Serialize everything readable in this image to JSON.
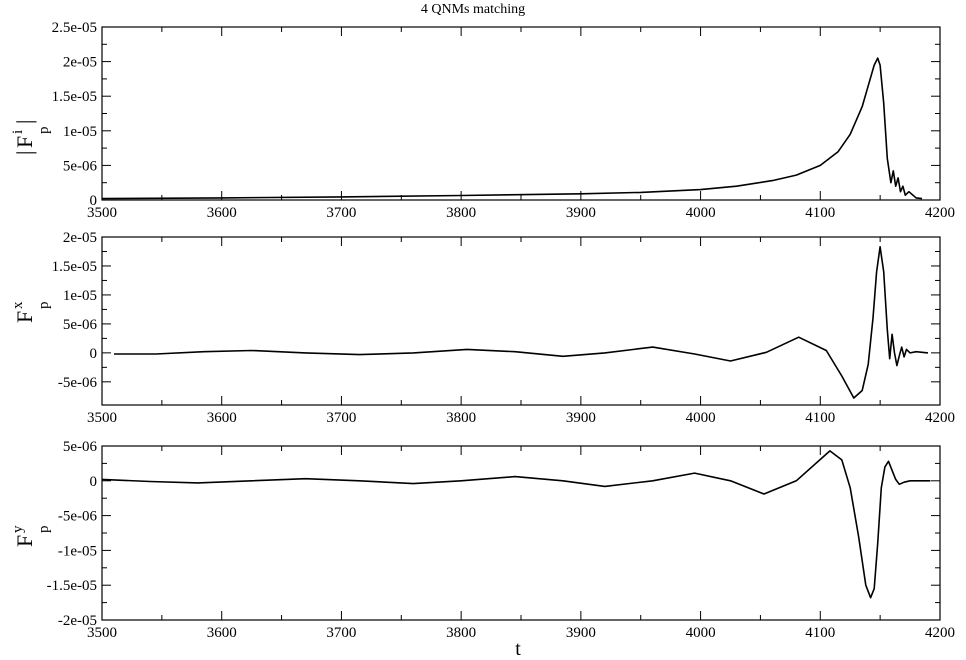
{
  "figure_title": "4 QNMs matching",
  "x_axis_label": "t",
  "chart_data": [
    {
      "type": "line",
      "title": "4 QNMs matching",
      "ylabel": {
        "main": "|F",
        "sup": "i",
        "sub": "p",
        "close": "|"
      },
      "xlim": [
        3500,
        4200
      ],
      "ylim": [
        0,
        2.5e-05
      ],
      "x_ticks": [
        3500,
        3600,
        3700,
        3800,
        3900,
        4000,
        4100,
        4200
      ],
      "x_tick_labels": [
        "3500",
        "3600",
        "3700",
        "3800",
        "3900",
        "4000",
        "4100",
        "4200"
      ],
      "y_ticks": [
        0,
        5e-06,
        1e-05,
        1.5e-05,
        2e-05,
        2.5e-05
      ],
      "y_tick_labels": [
        "0",
        "5e-06",
        "1e-05",
        "1.5e-05",
        "2e-05",
        "2.5e-05"
      ],
      "series": [
        {
          "x": [
            3500,
            3600,
            3700,
            3800,
            3900,
            3950,
            4000,
            4030,
            4060,
            4080,
            4100,
            4115,
            4125,
            4135,
            4140,
            4145,
            4148,
            4150,
            4153,
            4156,
            4159,
            4161,
            4163,
            4165,
            4167,
            4169,
            4171,
            4174,
            4180,
            4185
          ],
          "y": [
            2e-07,
            3e-07,
            4.5e-07,
            6.5e-07,
            9e-07,
            1.1e-06,
            1.5e-06,
            2e-06,
            2.8e-06,
            3.6e-06,
            5e-06,
            7e-06,
            9.5e-06,
            1.35e-05,
            1.65e-05,
            1.95e-05,
            2.05e-05,
            1.95e-05,
            1.4e-05,
            6e-06,
            2.5e-06,
            4.2e-06,
            2e-06,
            3.2e-06,
            1.2e-06,
            2e-06,
            7e-07,
            1.2e-06,
            3e-07,
            2e-07
          ]
        }
      ]
    },
    {
      "type": "line",
      "ylabel": {
        "main": "F",
        "sup": "x",
        "sub": "p"
      },
      "xlim": [
        3500,
        4200
      ],
      "ylim": [
        -9e-06,
        2e-05
      ],
      "x_ticks": [
        3500,
        3600,
        3700,
        3800,
        3900,
        4000,
        4100,
        4200
      ],
      "x_tick_labels": [
        "3500",
        "3600",
        "3700",
        "3800",
        "3900",
        "4000",
        "4100",
        "4200"
      ],
      "y_ticks": [
        -5e-06,
        0,
        5e-06,
        1e-05,
        1.5e-05,
        2e-05
      ],
      "y_tick_labels": [
        "-5e-06",
        "0",
        "5e-06",
        "1e-05",
        "1.5e-05",
        "2e-05"
      ],
      "series": [
        {
          "x": [
            3510,
            3545,
            3585,
            3625,
            3670,
            3715,
            3760,
            3805,
            3845,
            3885,
            3920,
            3960,
            3995,
            4025,
            4055,
            4082,
            4105,
            4118,
            4128,
            4135,
            4140,
            4144,
            4147,
            4150,
            4153,
            4156,
            4158,
            4160,
            4162,
            4164,
            4166,
            4168,
            4170,
            4172,
            4175,
            4180,
            4190
          ],
          "y": [
            -2e-07,
            -2e-07,
            2e-07,
            4e-07,
            0,
            -3e-07,
            0,
            6e-07,
            2e-07,
            -6e-07,
            0,
            1e-06,
            -2e-07,
            -1.4e-06,
            1e-07,
            2.7e-06,
            4e-07,
            -4e-06,
            -7.8e-06,
            -6.5e-06,
            -2e-06,
            6e-06,
            1.4e-05,
            1.83e-05,
            1.4e-05,
            4e-06,
            -1e-06,
            3.2e-06,
            0,
            -2.2e-06,
            -5e-07,
            1e-06,
            -7e-07,
            6e-07,
            0,
            2e-07,
            0
          ]
        }
      ]
    },
    {
      "type": "line",
      "ylabel": {
        "main": "F",
        "sup": "y",
        "sub": "p"
      },
      "xlim": [
        3500,
        4200
      ],
      "ylim": [
        -2e-05,
        5e-06
      ],
      "x_ticks": [
        3500,
        3600,
        3700,
        3800,
        3900,
        4000,
        4100,
        4200
      ],
      "x_tick_labels": [
        "3500",
        "3600",
        "3700",
        "3800",
        "3900",
        "4000",
        "4100",
        "4200"
      ],
      "y_ticks": [
        -2e-05,
        -1.5e-05,
        -1e-05,
        -5e-06,
        0,
        5e-06
      ],
      "y_tick_labels": [
        "-2e-05",
        "-1.5e-05",
        "-1e-05",
        "-5e-06",
        "0",
        "5e-06"
      ],
      "series": [
        {
          "x": [
            3500,
            3540,
            3580,
            3625,
            3670,
            3715,
            3760,
            3800,
            3845,
            3885,
            3920,
            3960,
            3995,
            4025,
            4053,
            4080,
            4108,
            4118,
            4125,
            4132,
            4138,
            4142,
            4145,
            4148,
            4151,
            4154,
            4157,
            4160,
            4163,
            4166,
            4170,
            4175,
            4180,
            4192
          ],
          "y": [
            2e-07,
            -1e-07,
            -3e-07,
            0,
            3e-07,
            0,
            -4e-07,
            0,
            6e-07,
            0,
            -8e-07,
            0,
            1.1e-06,
            0,
            -1.9e-06,
            0,
            4.3e-06,
            3e-06,
            -1e-06,
            -8e-06,
            -1.5e-05,
            -1.68e-05,
            -1.55e-05,
            -9e-06,
            -1e-06,
            2e-06,
            2.8e-06,
            1.5e-06,
            2e-07,
            -5e-07,
            -2e-07,
            0,
            0,
            0
          ]
        }
      ]
    }
  ]
}
